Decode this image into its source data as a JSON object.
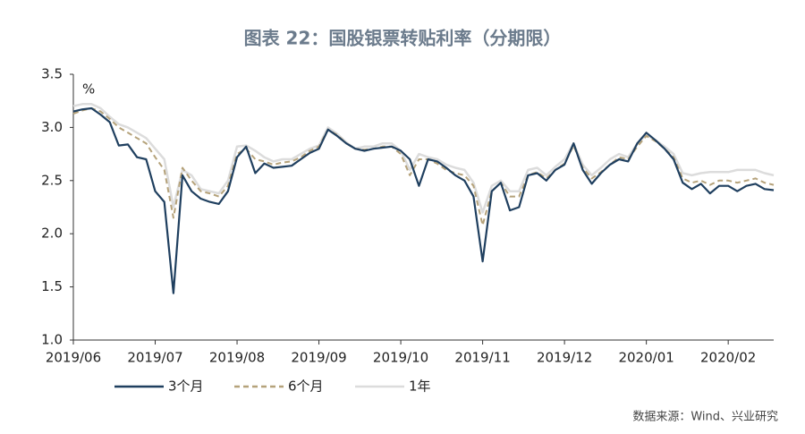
{
  "chart_data": {
    "type": "line",
    "title": "图表 22：国股银票转贴利率（分期限）",
    "unit_label": "%",
    "source": "数据来源：Wind、兴业研究",
    "categories": [
      "2019/06",
      null,
      null,
      null,
      null,
      null,
      null,
      null,
      null,
      "2019/07",
      null,
      null,
      null,
      null,
      null,
      null,
      null,
      null,
      "2019/08",
      null,
      null,
      null,
      null,
      null,
      null,
      null,
      null,
      "2019/09",
      null,
      null,
      null,
      null,
      null,
      null,
      null,
      null,
      "2019/10",
      null,
      null,
      null,
      null,
      null,
      null,
      null,
      null,
      "2019/11",
      null,
      null,
      null,
      null,
      null,
      null,
      null,
      null,
      "2019/12",
      null,
      null,
      null,
      null,
      null,
      null,
      null,
      null,
      "2020/01",
      null,
      null,
      null,
      null,
      null,
      null,
      null,
      null,
      "2020/02",
      null,
      null,
      null,
      null,
      null
    ],
    "series": [
      {
        "name": "1年",
        "color": "#dcdcdc",
        "dash": false,
        "width": 2.5,
        "values": [
          3.2,
          3.22,
          3.22,
          3.18,
          3.1,
          3.03,
          3.0,
          2.95,
          2.9,
          2.8,
          2.7,
          2.25,
          2.6,
          2.55,
          2.42,
          2.4,
          2.38,
          2.5,
          2.82,
          2.83,
          2.78,
          2.72,
          2.68,
          2.7,
          2.7,
          2.75,
          2.8,
          2.83,
          3.0,
          2.94,
          2.86,
          2.8,
          2.82,
          2.82,
          2.85,
          2.85,
          2.78,
          2.6,
          2.75,
          2.72,
          2.7,
          2.65,
          2.62,
          2.6,
          2.48,
          2.2,
          2.45,
          2.5,
          2.4,
          2.4,
          2.6,
          2.62,
          2.55,
          2.63,
          2.7,
          2.85,
          2.65,
          2.55,
          2.62,
          2.7,
          2.75,
          2.72,
          2.85,
          2.93,
          2.88,
          2.82,
          2.75,
          2.57,
          2.55,
          2.57,
          2.58,
          2.58,
          2.58,
          2.6,
          2.6,
          2.6,
          2.57,
          2.55
        ]
      },
      {
        "name": "6个月",
        "color": "#b5a27a",
        "dash": true,
        "width": 2,
        "values": [
          3.13,
          3.16,
          3.18,
          3.15,
          3.08,
          3.0,
          2.95,
          2.9,
          2.85,
          2.72,
          2.6,
          2.15,
          2.62,
          2.5,
          2.4,
          2.38,
          2.35,
          2.45,
          2.75,
          2.8,
          2.7,
          2.68,
          2.65,
          2.67,
          2.68,
          2.72,
          2.78,
          2.82,
          2.98,
          2.93,
          2.85,
          2.8,
          2.79,
          2.8,
          2.82,
          2.82,
          2.75,
          2.55,
          2.7,
          2.7,
          2.66,
          2.6,
          2.57,
          2.55,
          2.45,
          2.08,
          2.4,
          2.48,
          2.35,
          2.35,
          2.55,
          2.58,
          2.52,
          2.6,
          2.66,
          2.83,
          2.62,
          2.52,
          2.58,
          2.65,
          2.72,
          2.7,
          2.82,
          2.92,
          2.87,
          2.8,
          2.72,
          2.52,
          2.48,
          2.5,
          2.46,
          2.5,
          2.5,
          2.48,
          2.5,
          2.52,
          2.48,
          2.46
        ]
      },
      {
        "name": "3个月",
        "color": "#1f3f5f",
        "dash": false,
        "width": 2.2,
        "values": [
          3.15,
          3.17,
          3.18,
          3.12,
          3.05,
          2.83,
          2.84,
          2.72,
          2.7,
          2.4,
          2.3,
          1.44,
          2.55,
          2.4,
          2.33,
          2.3,
          2.28,
          2.4,
          2.72,
          2.82,
          2.57,
          2.66,
          2.62,
          2.63,
          2.64,
          2.7,
          2.76,
          2.8,
          2.98,
          2.92,
          2.85,
          2.8,
          2.78,
          2.8,
          2.81,
          2.82,
          2.78,
          2.7,
          2.45,
          2.7,
          2.68,
          2.62,
          2.55,
          2.5,
          2.35,
          1.74,
          2.4,
          2.48,
          2.22,
          2.25,
          2.55,
          2.57,
          2.5,
          2.6,
          2.65,
          2.85,
          2.6,
          2.47,
          2.57,
          2.65,
          2.7,
          2.68,
          2.85,
          2.95,
          2.88,
          2.8,
          2.7,
          2.48,
          2.42,
          2.47,
          2.38,
          2.45,
          2.45,
          2.4,
          2.45,
          2.47,
          2.42,
          2.41
        ]
      }
    ],
    "legend_order": [
      2,
      1,
      0
    ],
    "ylim": [
      1,
      3.5
    ],
    "yticks": [
      {
        "value": 1,
        "label": "1.0"
      },
      1.5,
      {
        "value": 2,
        "label": "2.0"
      },
      2.5,
      {
        "value": 3,
        "label": "3.0"
      },
      3.5
    ],
    "grid": false
  }
}
